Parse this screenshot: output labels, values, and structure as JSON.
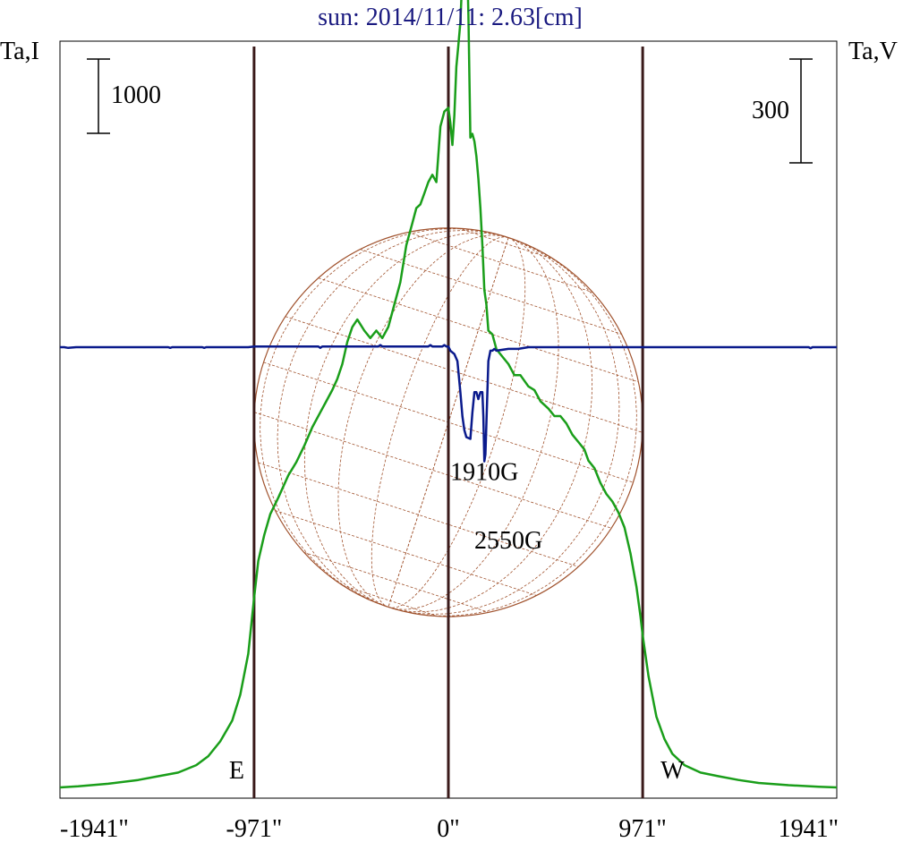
{
  "chart_data": {
    "type": "line",
    "title": "sun: 2014/11/11: 2.63[cm]",
    "left_axis_label": "Ta,I",
    "right_axis_label": "Ta,V",
    "left_scale_bar_label": "1000",
    "left_scale_bar_value": 1000,
    "right_scale_bar_label": "300",
    "right_scale_bar_value": 300,
    "xlim": [
      -1941,
      1941
    ],
    "x_tick_values": [
      -1941,
      -971,
      0,
      971,
      1941
    ],
    "x_tick_labels": [
      "-1941\"",
      "-971\"",
      "0\"",
      "971\"",
      "1941\""
    ],
    "limb_markers": [
      {
        "x": -971,
        "label": "E"
      },
      {
        "x": 0,
        "label": ""
      },
      {
        "x": 971,
        "label": "W"
      }
    ],
    "annotations": [
      {
        "text": "1910G",
        "x": 180,
        "level": 0.42
      },
      {
        "text": "2550G",
        "x": 300,
        "level": 0.33
      }
    ],
    "grid": false,
    "colors": {
      "intensity": "#1a9e1a",
      "polarization": "#0a1a8c",
      "limb_lines": "#3a1a1a",
      "solar_disk": "#a0522d",
      "title": "#1a1a80"
    },
    "series": [
      {
        "name": "Ta,I",
        "axis": "left",
        "x": [
          -1941,
          -1850,
          -1700,
          -1550,
          -1450,
          -1350,
          -1260,
          -1200,
          -1140,
          -1080,
          -1040,
          -1000,
          -971,
          -950,
          -920,
          -890,
          -850,
          -800,
          -760,
          -720,
          -680,
          -640,
          -610,
          -580,
          -555,
          -530,
          -505,
          -480,
          -455,
          -420,
          -390,
          -360,
          -330,
          -300,
          -270,
          -240,
          -210,
          -180,
          -160,
          -140,
          -120,
          -100,
          -80,
          -60,
          -40,
          -20,
          0,
          10,
          20,
          30,
          40,
          50,
          60,
          70,
          80,
          90,
          100,
          110,
          120,
          130,
          140,
          150,
          160,
          170,
          180,
          190,
          200,
          220,
          240,
          270,
          300,
          330,
          360,
          400,
          430,
          460,
          500,
          530,
          560,
          590,
          620,
          650,
          680,
          700,
          730,
          760,
          790,
          820,
          850,
          880,
          910,
          940,
          960,
          971,
          1000,
          1040,
          1080,
          1120,
          1180,
          1260,
          1350,
          1450,
          1550,
          1700,
          1850,
          1941
        ],
        "values": [
          0,
          15,
          50,
          100,
          150,
          200,
          300,
          420,
          620,
          900,
          1250,
          1800,
          2550,
          3050,
          3400,
          3680,
          3900,
          4200,
          4380,
          4600,
          4850,
          5050,
          5200,
          5350,
          5500,
          5700,
          6000,
          6200,
          6300,
          6150,
          6050,
          6150,
          6050,
          6200,
          6500,
          6800,
          7300,
          7600,
          7800,
          7850,
          8000,
          8150,
          8250,
          8150,
          8900,
          9100,
          9150,
          8950,
          8650,
          9050,
          9700,
          10000,
          10300,
          10950,
          11800,
          11600,
          10400,
          8750,
          8800,
          8700,
          8500,
          8200,
          7800,
          7300,
          6700,
          6500,
          6150,
          6100,
          5900,
          5800,
          5700,
          5550,
          5550,
          5400,
          5350,
          5200,
          5100,
          5000,
          5000,
          4900,
          4750,
          4650,
          4550,
          4400,
          4300,
          4100,
          3950,
          3850,
          3700,
          3500,
          3150,
          2700,
          2300,
          2050,
          1500,
          950,
          650,
          450,
          300,
          200,
          150,
          100,
          60,
          30,
          10,
          0
        ]
      },
      {
        "name": "Ta,V",
        "axis": "right",
        "x": [
          -1941,
          -1920,
          -1900,
          -1860,
          -1700,
          -1500,
          -1400,
          -1390,
          -1380,
          -1300,
          -1230,
          -1220,
          -1210,
          -1100,
          -1000,
          -971,
          -900,
          -800,
          -700,
          -650,
          -640,
          -630,
          -500,
          -400,
          -350,
          -340,
          -330,
          -250,
          -150,
          -100,
          -90,
          -80,
          -30,
          -20,
          -10,
          0,
          10,
          30,
          45,
          60,
          70,
          80,
          90,
          110,
          120,
          130,
          140,
          150,
          160,
          170,
          175,
          180,
          185,
          190,
          200,
          210,
          220,
          230,
          240,
          300,
          350,
          400,
          450,
          500,
          550,
          600,
          700,
          800,
          900,
          971,
          1000,
          1100,
          1300,
          1500,
          1700,
          1800,
          1810,
          1820,
          1900,
          1941
        ],
        "values": [
          0,
          0,
          -2,
          0,
          0,
          0,
          0,
          -2,
          0,
          0,
          0,
          -2,
          0,
          0,
          0,
          2,
          2,
          2,
          2,
          2,
          -2,
          2,
          2,
          2,
          2,
          6,
          2,
          2,
          2,
          2,
          6,
          2,
          2,
          6,
          2,
          2,
          -10,
          -20,
          -40,
          -130,
          -200,
          -240,
          -260,
          -265,
          -190,
          -130,
          -130,
          -150,
          -130,
          -130,
          -200,
          -330,
          -310,
          -220,
          -40,
          -10,
          -10,
          -5,
          -10,
          -5,
          -5,
          0,
          0,
          0,
          0,
          0,
          0,
          0,
          0,
          0,
          0,
          0,
          0,
          0,
          0,
          0,
          -3,
          0,
          0,
          0
        ]
      }
    ]
  }
}
